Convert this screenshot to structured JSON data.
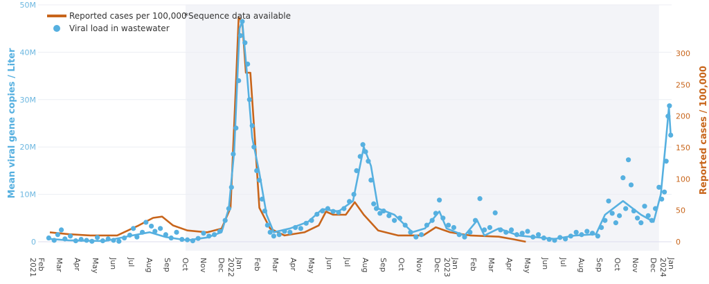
{
  "chart_data": {
    "type": "line",
    "title": "",
    "ylabel_left": "Mean viral gene copies / Liter",
    "ylabel_right": "Reported cases / 100,000",
    "x_unit": "months since Feb 2021",
    "x_ticks": [
      {
        "t": 0,
        "label": "Feb",
        "year": "2021"
      },
      {
        "t": 1,
        "label": "Mar"
      },
      {
        "t": 2,
        "label": "Apr"
      },
      {
        "t": 3,
        "label": "May"
      },
      {
        "t": 4,
        "label": "Jun"
      },
      {
        "t": 5,
        "label": "Jul"
      },
      {
        "t": 6,
        "label": "Aug"
      },
      {
        "t": 7,
        "label": "Sep"
      },
      {
        "t": 8,
        "label": "Oct"
      },
      {
        "t": 9,
        "label": "Nov"
      },
      {
        "t": 10,
        "label": "Dec"
      },
      {
        "t": 11,
        "label": "Jan",
        "year": "2022"
      },
      {
        "t": 12,
        "label": "Feb"
      },
      {
        "t": 13,
        "label": "Mar"
      },
      {
        "t": 14,
        "label": "Apr"
      },
      {
        "t": 15,
        "label": "May"
      },
      {
        "t": 16,
        "label": "Jun"
      },
      {
        "t": 17,
        "label": "Jul"
      },
      {
        "t": 18,
        "label": "Aug"
      },
      {
        "t": 19,
        "label": "Sep"
      },
      {
        "t": 20,
        "label": "Oct"
      },
      {
        "t": 21,
        "label": "Nov"
      },
      {
        "t": 22,
        "label": "Dec"
      },
      {
        "t": 23,
        "label": "Jan",
        "year": "2023"
      },
      {
        "t": 24,
        "label": "Feb"
      },
      {
        "t": 25,
        "label": "Mar"
      },
      {
        "t": 26,
        "label": "Apr"
      },
      {
        "t": 27,
        "label": "May"
      },
      {
        "t": 28,
        "label": "Jun"
      },
      {
        "t": 29,
        "label": "Jul"
      },
      {
        "t": 30,
        "label": "Aug"
      },
      {
        "t": 31,
        "label": "Sep"
      },
      {
        "t": 32,
        "label": "Oct"
      },
      {
        "t": 33,
        "label": "Nov"
      },
      {
        "t": 34,
        "label": "Dec"
      },
      {
        "t": 35,
        "label": "Jan",
        "year": "2024"
      }
    ],
    "y_left": {
      "min": 0,
      "max": 50,
      "unit": "M",
      "ticks": [
        {
          "v": 0,
          "label": "0"
        },
        {
          "v": 10,
          "label": "10M"
        },
        {
          "v": 20,
          "label": "20M"
        },
        {
          "v": 30,
          "label": "30M"
        },
        {
          "v": 40,
          "label": "40M"
        },
        {
          "v": 50,
          "label": "50M"
        }
      ]
    },
    "y_right": {
      "min": 0,
      "max": 350,
      "ticks": [
        {
          "v": 0,
          "label": "0"
        },
        {
          "v": 50,
          "label": "50"
        },
        {
          "v": 100,
          "label": "100"
        },
        {
          "v": 150,
          "label": "150"
        },
        {
          "v": 200,
          "label": "200"
        },
        {
          "v": 250,
          "label": "250"
        },
        {
          "v": 300,
          "label": "300"
        }
      ]
    },
    "shaded_range": [
      8,
      34.3
    ],
    "legend": {
      "placement": "top-left",
      "items": [
        {
          "label": "Reported cases per 100,000",
          "color": "#c8651b",
          "marker": "line"
        },
        {
          "label": "Viral load in wastewater",
          "color": "#56b0e0",
          "marker": "dot"
        }
      ],
      "note": "*Sequence data available"
    },
    "series": [
      {
        "name": "Reported cases per 100,000",
        "axis": "right",
        "color": "#c8651b",
        "points": [
          [
            0.46,
            15
          ],
          [
            1.5,
            12
          ],
          [
            2.7,
            10
          ],
          [
            4.2,
            10
          ],
          [
            5.4,
            26
          ],
          [
            6.2,
            38
          ],
          [
            6.7,
            40
          ],
          [
            7.3,
            26
          ],
          [
            8.1,
            18
          ],
          [
            9.2,
            15
          ],
          [
            10,
            21
          ],
          [
            10.5,
            54
          ],
          [
            10.8,
            252
          ],
          [
            10.95,
            357
          ],
          [
            11.15,
            350
          ],
          [
            11.35,
            269
          ],
          [
            11.6,
            269
          ],
          [
            11.85,
            164
          ],
          [
            12.1,
            54
          ],
          [
            12.7,
            21
          ],
          [
            13.5,
            10
          ],
          [
            14.6,
            15
          ],
          [
            15.4,
            26
          ],
          [
            15.8,
            48
          ],
          [
            16.2,
            43
          ],
          [
            16.9,
            43
          ],
          [
            17.4,
            63
          ],
          [
            17.9,
            43
          ],
          [
            18.7,
            18
          ],
          [
            19.8,
            10
          ],
          [
            21.2,
            10
          ],
          [
            21.9,
            23
          ],
          [
            22.7,
            15
          ],
          [
            23.8,
            10
          ],
          [
            25.4,
            8
          ],
          [
            26.2,
            4
          ],
          [
            26.9,
            0
          ]
        ]
      },
      {
        "name": "Viral load in wastewater (trend)",
        "axis": "left",
        "color": "#56b0e0",
        "points": [
          [
            0.46,
            0.6
          ],
          [
            1.5,
            0.3
          ],
          [
            3.5,
            0.15
          ],
          [
            5,
            1.3
          ],
          [
            6,
            2
          ],
          [
            6.9,
            1
          ],
          [
            8.1,
            0.3
          ],
          [
            9.2,
            0.9
          ],
          [
            10,
            2
          ],
          [
            10.4,
            7
          ],
          [
            10.7,
            19
          ],
          [
            11,
            45
          ],
          [
            11.15,
            46.6
          ],
          [
            11.4,
            36
          ],
          [
            11.7,
            22
          ],
          [
            12.1,
            14.5
          ],
          [
            12.5,
            5.7
          ],
          [
            12.9,
            2
          ],
          [
            13.8,
            2.8
          ],
          [
            14.8,
            4.2
          ],
          [
            15.6,
            6.9
          ],
          [
            16.5,
            6.4
          ],
          [
            17.3,
            8.6
          ],
          [
            17.9,
            20
          ],
          [
            18.3,
            16
          ],
          [
            18.7,
            7
          ],
          [
            19.6,
            5.7
          ],
          [
            20.6,
            2
          ],
          [
            21.3,
            2.8
          ],
          [
            22.1,
            6.4
          ],
          [
            22.5,
            2.8
          ],
          [
            23.5,
            1.3
          ],
          [
            24.2,
            4.5
          ],
          [
            24.6,
            1.3
          ],
          [
            25.4,
            2.8
          ],
          [
            26.5,
            1.3
          ],
          [
            28.5,
            0.6
          ],
          [
            29.6,
            1.3
          ],
          [
            30.8,
            1.6
          ],
          [
            31.3,
            5.7
          ],
          [
            32.3,
            8.6
          ],
          [
            33.3,
            5.7
          ],
          [
            34,
            4.2
          ],
          [
            34.4,
            10
          ],
          [
            34.7,
            22
          ],
          [
            34.85,
            28.4
          ],
          [
            34.95,
            22.5
          ]
        ]
      },
      {
        "name": "Viral load in wastewater",
        "axis": "left",
        "color": "#56b0e0",
        "type": "scatter",
        "points": [
          [
            0.4,
            0.8
          ],
          [
            0.7,
            0.3
          ],
          [
            0.9,
            1.5
          ],
          [
            1.1,
            2.5
          ],
          [
            1.3,
            0.6
          ],
          [
            1.6,
            1.2
          ],
          [
            1.9,
            0.2
          ],
          [
            2.2,
            0.5
          ],
          [
            2.5,
            0.3
          ],
          [
            2.8,
            0.1
          ],
          [
            3.1,
            0.9
          ],
          [
            3.4,
            0.2
          ],
          [
            3.7,
            0.6
          ],
          [
            4.0,
            0.3
          ],
          [
            4.3,
            0.1
          ],
          [
            4.6,
            0.8
          ],
          [
            4.9,
            1.4
          ],
          [
            5.1,
            2.8
          ],
          [
            5.3,
            1.0
          ],
          [
            5.6,
            2.0
          ],
          [
            5.8,
            4.1
          ],
          [
            6.1,
            3.3
          ],
          [
            6.3,
            2.2
          ],
          [
            6.6,
            2.8
          ],
          [
            6.9,
            1.5
          ],
          [
            7.2,
            0.8
          ],
          [
            7.5,
            2.0
          ],
          [
            7.8,
            0.5
          ],
          [
            8.1,
            0.4
          ],
          [
            8.4,
            0.2
          ],
          [
            8.7,
            0.7
          ],
          [
            9.0,
            1.8
          ],
          [
            9.3,
            1.2
          ],
          [
            9.6,
            1.5
          ],
          [
            9.9,
            2.2
          ],
          [
            10.2,
            4.5
          ],
          [
            10.4,
            7.0
          ],
          [
            10.55,
            11.5
          ],
          [
            10.65,
            18.5
          ],
          [
            10.8,
            24
          ],
          [
            10.95,
            34
          ],
          [
            11.05,
            43.5
          ],
          [
            11.15,
            46.5
          ],
          [
            11.3,
            42
          ],
          [
            11.45,
            37.5
          ],
          [
            11.55,
            30
          ],
          [
            11.7,
            24.5
          ],
          [
            11.8,
            20
          ],
          [
            11.95,
            15
          ],
          [
            12.1,
            13
          ],
          [
            12.25,
            9
          ],
          [
            12.4,
            6.5
          ],
          [
            12.55,
            3.5
          ],
          [
            12.7,
            2.0
          ],
          [
            12.9,
            1.2
          ],
          [
            13.2,
            1.5
          ],
          [
            13.5,
            2.2
          ],
          [
            13.8,
            2.0
          ],
          [
            14.1,
            3.0
          ],
          [
            14.4,
            2.8
          ],
          [
            14.7,
            3.9
          ],
          [
            15.0,
            4.5
          ],
          [
            15.3,
            5.8
          ],
          [
            15.6,
            6.5
          ],
          [
            15.9,
            7.0
          ],
          [
            16.2,
            6.4
          ],
          [
            16.5,
            6.2
          ],
          [
            16.8,
            7.0
          ],
          [
            17.1,
            8.5
          ],
          [
            17.35,
            10
          ],
          [
            17.5,
            15
          ],
          [
            17.7,
            18
          ],
          [
            17.85,
            20.5
          ],
          [
            18.0,
            19
          ],
          [
            18.15,
            17
          ],
          [
            18.3,
            13
          ],
          [
            18.45,
            8
          ],
          [
            18.6,
            7
          ],
          [
            18.8,
            6
          ],
          [
            19.0,
            6.5
          ],
          [
            19.3,
            5.5
          ],
          [
            19.6,
            4.5
          ],
          [
            19.9,
            5.0
          ],
          [
            20.2,
            3.5
          ],
          [
            20.5,
            2.0
          ],
          [
            20.8,
            1.0
          ],
          [
            21.1,
            1.5
          ],
          [
            21.4,
            3.5
          ],
          [
            21.7,
            4.5
          ],
          [
            21.9,
            6
          ],
          [
            22.1,
            8.8
          ],
          [
            22.3,
            5
          ],
          [
            22.6,
            3.5
          ],
          [
            22.9,
            3.0
          ],
          [
            23.2,
            1.5
          ],
          [
            23.5,
            1.0
          ],
          [
            23.8,
            2.0
          ],
          [
            24.1,
            4.5
          ],
          [
            24.35,
            9.1
          ],
          [
            24.6,
            2.5
          ],
          [
            24.9,
            3.0
          ],
          [
            25.2,
            6.1
          ],
          [
            25.5,
            2.5
          ],
          [
            25.8,
            2.0
          ],
          [
            26.1,
            2.5
          ],
          [
            26.4,
            1.5
          ],
          [
            26.7,
            1.8
          ],
          [
            27.0,
            2.2
          ],
          [
            27.3,
            1.0
          ],
          [
            27.6,
            1.5
          ],
          [
            27.9,
            0.8
          ],
          [
            28.2,
            0.5
          ],
          [
            28.5,
            0.3
          ],
          [
            28.8,
            0.9
          ],
          [
            29.1,
            0.6
          ],
          [
            29.4,
            1.2
          ],
          [
            29.7,
            2.0
          ],
          [
            30.0,
            1.5
          ],
          [
            30.3,
            2.2
          ],
          [
            30.6,
            1.8
          ],
          [
            30.9,
            1.2
          ],
          [
            31.1,
            3.0
          ],
          [
            31.3,
            4.5
          ],
          [
            31.5,
            8.6
          ],
          [
            31.7,
            6.0
          ],
          [
            31.9,
            4.0
          ],
          [
            32.1,
            5.5
          ],
          [
            32.3,
            13.5
          ],
          [
            32.45,
            7.0
          ],
          [
            32.6,
            17.3
          ],
          [
            32.75,
            12.0
          ],
          [
            32.9,
            6.5
          ],
          [
            33.1,
            5.0
          ],
          [
            33.3,
            4.0
          ],
          [
            33.5,
            7.5
          ],
          [
            33.7,
            5.5
          ],
          [
            33.9,
            4.5
          ],
          [
            34.1,
            7.0
          ],
          [
            34.3,
            11.5
          ],
          [
            34.45,
            9.0
          ],
          [
            34.6,
            10.5
          ],
          [
            34.7,
            17
          ],
          [
            34.8,
            26.5
          ],
          [
            34.88,
            28.7
          ],
          [
            34.95,
            22.5
          ]
        ]
      }
    ]
  }
}
